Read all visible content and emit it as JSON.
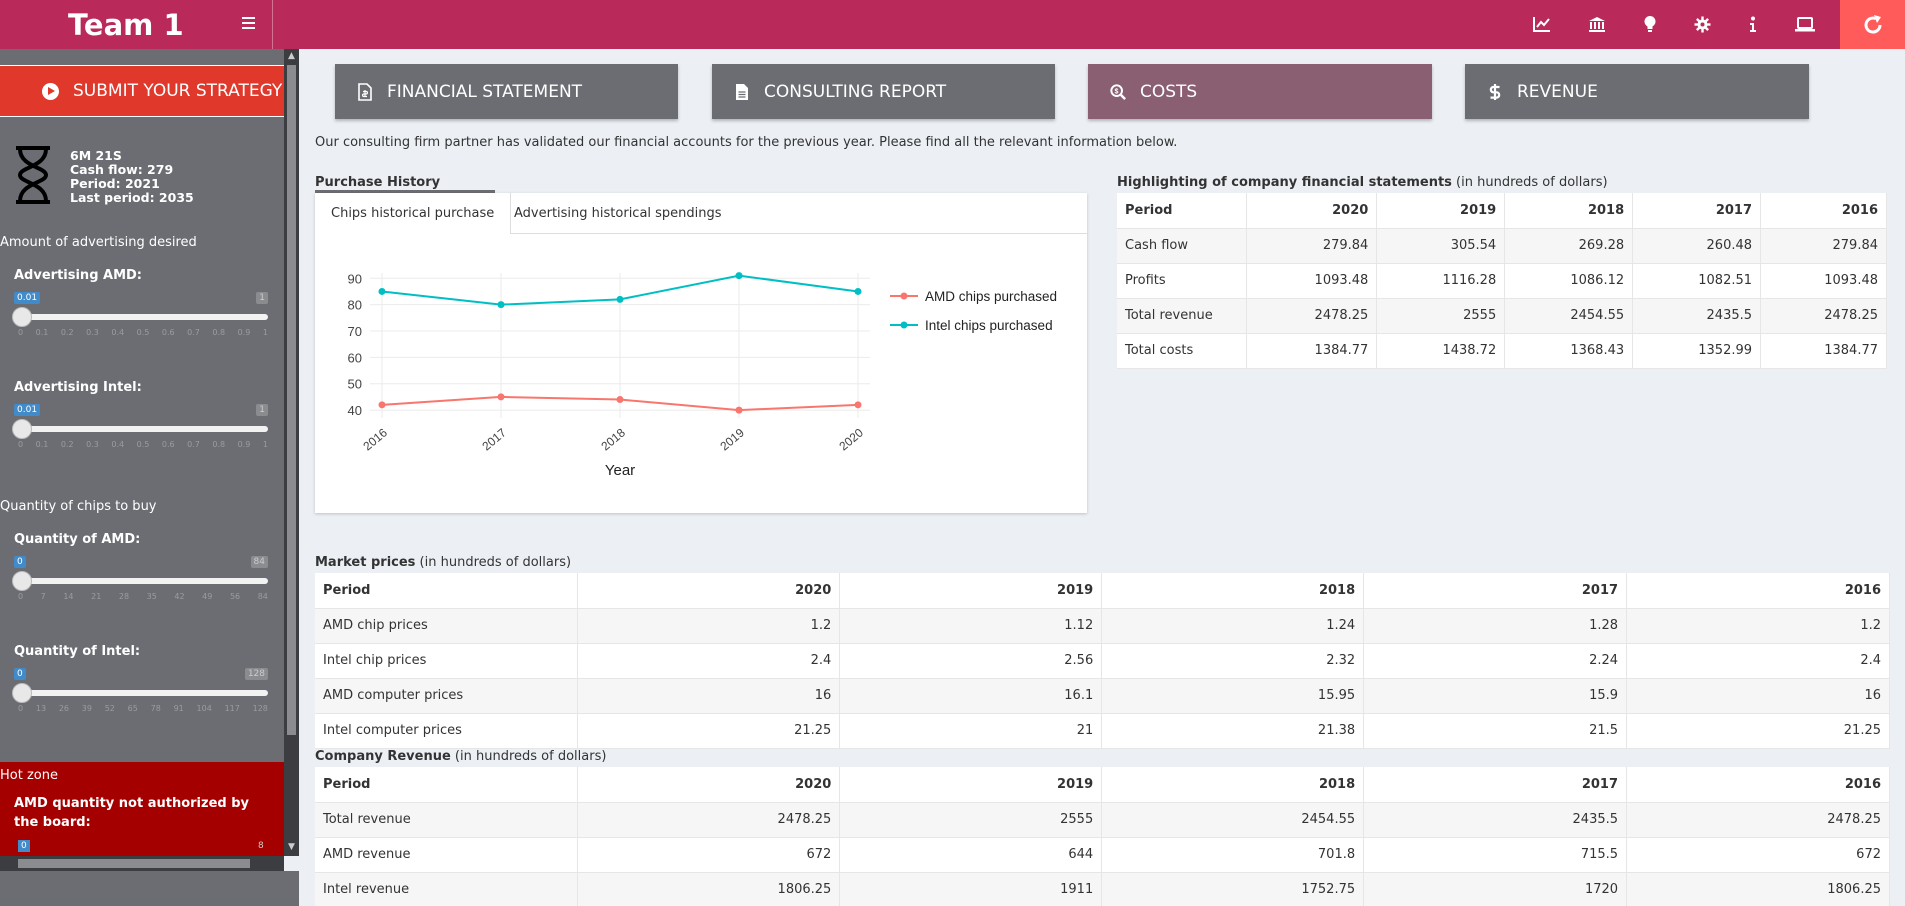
{
  "header": {
    "team": "Team 1",
    "icons": [
      "chart-line-icon",
      "bank-icon",
      "lightbulb-icon",
      "gear-icon",
      "info-icon",
      "laptop-icon",
      "refresh-icon"
    ]
  },
  "sidebar": {
    "submit_label": "SUBMIT YOUR STRATEGY",
    "status": {
      "timer": "6M 21S",
      "cash_flow": "Cash flow: 279",
      "period": "Period: 2021",
      "last_period": "Last period: 2035"
    },
    "advertising_section": "Amount of advertising desired",
    "adv_amd": {
      "label": "Advertising AMD:",
      "value": "0.01",
      "max": "1",
      "ticks": [
        "0",
        "0.1",
        "0.2",
        "0.3",
        "0.4",
        "0.5",
        "0.6",
        "0.7",
        "0.8",
        "0.9",
        "1"
      ]
    },
    "adv_intel": {
      "label": "Advertising Intel:",
      "value": "0.01",
      "max": "1",
      "ticks": [
        "0",
        "0.1",
        "0.2",
        "0.3",
        "0.4",
        "0.5",
        "0.6",
        "0.7",
        "0.8",
        "0.9",
        "1"
      ]
    },
    "quantity_section": "Quantity of chips to buy",
    "qty_amd": {
      "label": "Quantity of AMD:",
      "value": "0",
      "max": "84",
      "ticks": [
        "0",
        "7",
        "14",
        "21",
        "28",
        "35",
        "42",
        "49",
        "56",
        "84"
      ]
    },
    "qty_intel": {
      "label": "Quantity of Intel:",
      "value": "0",
      "max": "128",
      "ticks": [
        "0",
        "13",
        "26",
        "39",
        "52",
        "65",
        "78",
        "91",
        "104",
        "117",
        "128"
      ]
    },
    "hotzone": {
      "title": "Hot zone",
      "message": "AMD quantity not authorized by the board:",
      "value": "0",
      "max": "8"
    }
  },
  "top_buttons": [
    {
      "label": "FINANCIAL STATEMENT",
      "icon": "file-invoice-icon"
    },
    {
      "label": "CONSULTING REPORT",
      "icon": "file-text-icon"
    },
    {
      "label": "COSTS",
      "icon": "search-dollar-icon"
    },
    {
      "label": "REVENUE",
      "icon": "dollar-icon"
    }
  ],
  "intro": "Our consulting firm partner has validated our financial accounts for the previous year. Please find all the relevant information below.",
  "purchase_history": {
    "title": "Purchase History",
    "tabs": [
      "Chips historical purchase",
      "Advertising historical spendings"
    ]
  },
  "chart_data": {
    "type": "line",
    "x": [
      "2016",
      "2017",
      "2018",
      "2019",
      "2020"
    ],
    "xlabel": "Year",
    "ylabel": "",
    "ylim": [
      37,
      92
    ],
    "yticks": [
      40,
      50,
      60,
      70,
      80,
      90
    ],
    "series": [
      {
        "name": "AMD chips purchased",
        "color": "#f8766d",
        "values": [
          42,
          45,
          44,
          40,
          42
        ]
      },
      {
        "name": "Intel chips purchased",
        "color": "#00bfc4",
        "values": [
          85,
          80,
          82,
          91,
          85
        ]
      }
    ],
    "legend": "right",
    "grid": true
  },
  "highlight": {
    "title": "Highlighting of company financial statements",
    "unit": " (in hundreds of dollars)",
    "headers": [
      "Period",
      "2020",
      "2019",
      "2018",
      "2017",
      "2016"
    ],
    "rows": [
      [
        "Cash flow",
        "279.84",
        "305.54",
        "269.28",
        "260.48",
        "279.84"
      ],
      [
        "Profits",
        "1093.48",
        "1116.28",
        "1086.12",
        "1082.51",
        "1093.48"
      ],
      [
        "Total revenue",
        "2478.25",
        "2555",
        "2454.55",
        "2435.5",
        "2478.25"
      ],
      [
        "Total costs",
        "1384.77",
        "1438.72",
        "1368.43",
        "1352.99",
        "1384.77"
      ]
    ]
  },
  "market": {
    "title": "Market prices",
    "unit": " (in hundreds of dollars)",
    "headers": [
      "Period",
      "2020",
      "2019",
      "2018",
      "2017",
      "2016"
    ],
    "rows": [
      [
        "AMD chip prices",
        "1.2",
        "1.12",
        "1.24",
        "1.28",
        "1.2"
      ],
      [
        "Intel chip prices",
        "2.4",
        "2.56",
        "2.32",
        "2.24",
        "2.4"
      ],
      [
        "AMD computer prices",
        "16",
        "16.1",
        "15.95",
        "15.9",
        "16"
      ],
      [
        "Intel computer prices",
        "21.25",
        "21",
        "21.38",
        "21.5",
        "21.25"
      ]
    ]
  },
  "company_revenue": {
    "title": "Company Revenue",
    "unit": " (in hundreds of dollars)",
    "headers": [
      "Period",
      "2020",
      "2019",
      "2018",
      "2017",
      "2016"
    ],
    "rows": [
      [
        "Total revenue",
        "2478.25",
        "2555",
        "2454.55",
        "2435.5",
        "2478.25"
      ],
      [
        "AMD revenue",
        "672",
        "644",
        "701.8",
        "715.5",
        "672"
      ],
      [
        "Intel revenue",
        "1806.25",
        "1911",
        "1752.75",
        "1720",
        "1806.25"
      ]
    ]
  }
}
